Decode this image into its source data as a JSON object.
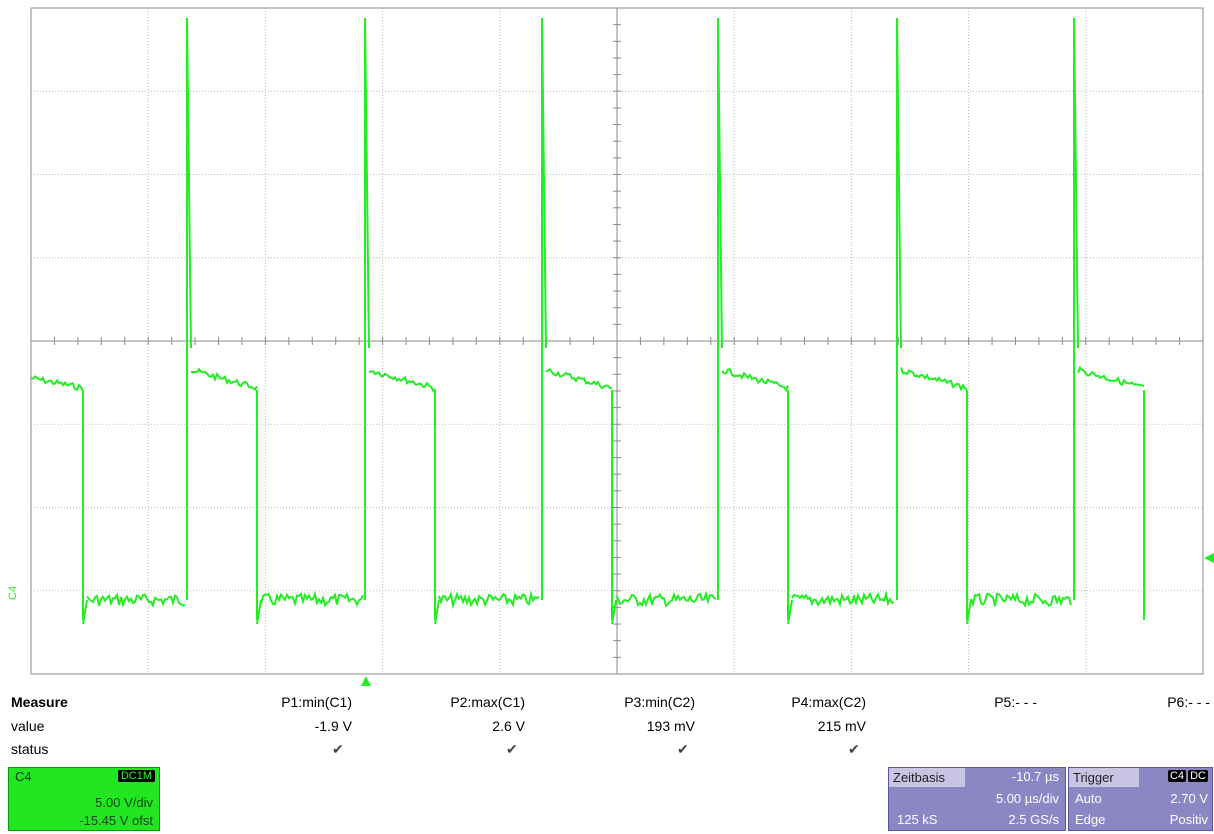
{
  "measure": {
    "title": "Measure",
    "row_value": "value",
    "row_status": "status",
    "params": [
      {
        "label": "P1:min(C1)",
        "value": "-1.9 V",
        "status": "✔"
      },
      {
        "label": "P2:max(C1)",
        "value": "2.6 V",
        "status": "✔"
      },
      {
        "label": "P3:min(C2)",
        "value": "193 mV",
        "status": "✔"
      },
      {
        "label": "P4:max(C2)",
        "value": "215 mV",
        "status": "✔"
      },
      {
        "label": "P5:- - -",
        "value": "",
        "status": ""
      },
      {
        "label": "P6:- - -",
        "value": "",
        "status": ""
      }
    ]
  },
  "channel": {
    "name": "C4",
    "coupling": "DC1M",
    "vdiv": "5.00 V/div",
    "offset": "-15.45 V ofst",
    "trace_color": "#22ee22",
    "marker_label": "C4"
  },
  "timebase": {
    "label": "Zeitbasis",
    "delay": "-10.7 µs",
    "tdiv": "5.00 µs/div",
    "samples": "125 kS",
    "rate": "2.5 GS/s"
  },
  "trigger": {
    "label": "Trigger",
    "source": "C4",
    "coupling": "DC",
    "mode": "Auto",
    "level": "2.70 V",
    "type": "Edge",
    "slope": "Positiv"
  },
  "colors": {
    "trace": "#22ee22",
    "grid": "#9a9a9a",
    "panel": "#8b86c4"
  }
}
